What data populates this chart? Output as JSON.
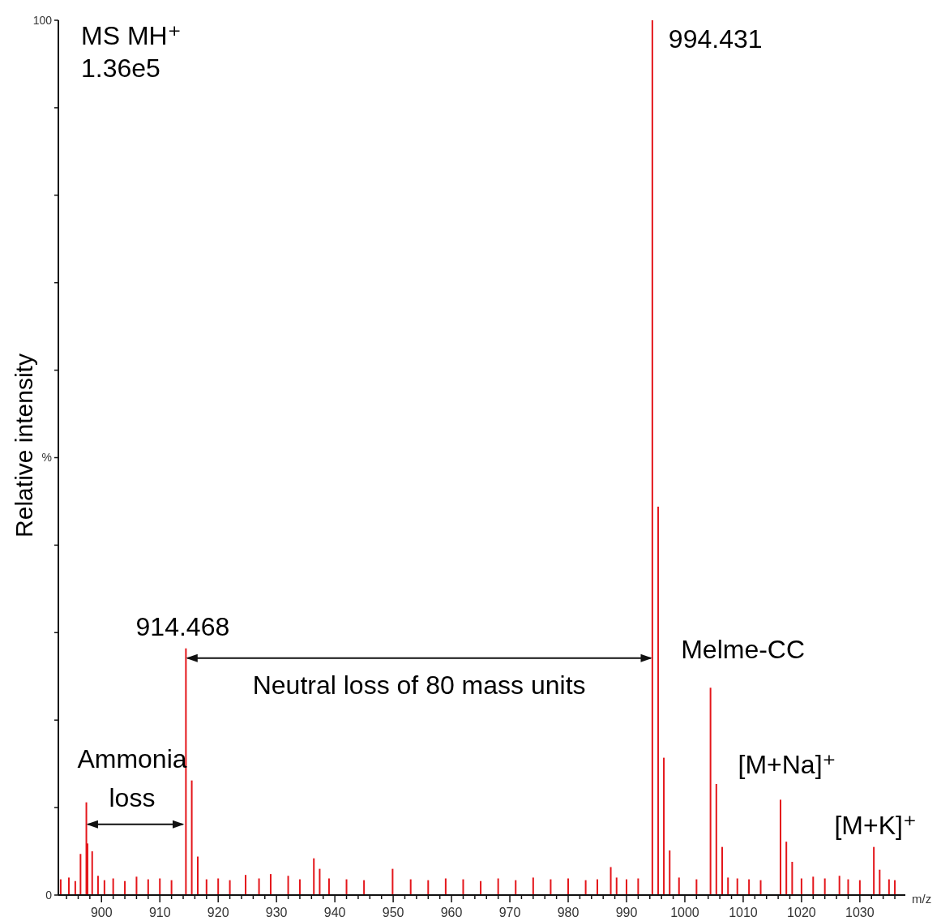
{
  "chart_data": {
    "type": "bar",
    "xlabel": "m/z",
    "ylabel": "Relative intensity",
    "x": [
      893,
      894.4,
      895.5,
      896.4,
      897.4,
      897.6,
      898.4,
      899.4,
      900.5,
      902,
      904,
      906,
      908,
      910,
      912,
      914.468,
      915.47,
      916.5,
      918,
      920,
      922,
      924.7,
      927,
      929,
      932,
      934,
      936.4,
      937.4,
      939,
      942,
      945,
      949.9,
      953,
      956,
      959,
      962,
      965,
      968,
      971,
      974,
      977,
      980,
      983,
      985,
      987.3,
      988.3,
      990,
      992,
      994.431,
      995.43,
      996.4,
      997.4,
      999,
      1002,
      1004.4,
      1005.4,
      1006.4,
      1007.4,
      1009,
      1011,
      1013,
      1016.4,
      1017.4,
      1018.4,
      1020,
      1022,
      1024,
      1026.5,
      1028,
      1030,
      1032.4,
      1033.4,
      1035,
      1036
    ],
    "values": [
      1.8,
      2.0,
      1.6,
      4.7,
      10.6,
      5.9,
      5.0,
      2.2,
      1.7,
      1.9,
      1.6,
      2.1,
      1.8,
      1.9,
      1.7,
      28.2,
      13.1,
      4.4,
      1.8,
      1.9,
      1.7,
      2.3,
      1.9,
      2.4,
      2.2,
      1.8,
      4.2,
      3.0,
      1.9,
      1.8,
      1.7,
      3.0,
      1.8,
      1.7,
      1.9,
      1.8,
      1.6,
      1.9,
      1.7,
      2.0,
      1.8,
      1.9,
      1.7,
      1.8,
      3.2,
      2.0,
      1.8,
      1.9,
      100,
      44.4,
      15.7,
      5.1,
      2.0,
      1.8,
      23.7,
      12.7,
      5.5,
      2.0,
      1.9,
      1.8,
      1.7,
      10.9,
      6.1,
      3.8,
      1.9,
      2.1,
      1.9,
      2.2,
      1.8,
      1.7,
      5.5,
      2.9,
      1.8,
      1.7
    ],
    "color": "#e4161b",
    "xlim": [
      892.6,
      1037.8
    ],
    "xticks": [
      900,
      910,
      920,
      930,
      940,
      950,
      960,
      970,
      980,
      990,
      1000,
      1010,
      1020,
      1030,
      {
        "value": 894,
        "label": null
      },
      {
        "value": 896,
        "label": null
      },
      {
        "value": 898,
        "label": null
      },
      {
        "value": 902,
        "label": null
      },
      {
        "value": 904,
        "label": null
      },
      {
        "value": 906,
        "label": null
      },
      {
        "value": 908,
        "label": null
      },
      {
        "value": 912,
        "label": null
      },
      {
        "value": 914,
        "label": null
      },
      {
        "value": 916,
        "label": null
      },
      {
        "value": 918,
        "label": null
      },
      {
        "value": 922,
        "label": null
      },
      {
        "value": 924,
        "label": null
      },
      {
        "value": 926,
        "label": null
      },
      {
        "value": 928,
        "label": null
      },
      {
        "value": 932,
        "label": null
      },
      {
        "value": 934,
        "label": null
      },
      {
        "value": 936,
        "label": null
      },
      {
        "value": 938,
        "label": null
      },
      {
        "value": 942,
        "label": null
      },
      {
        "value": 944,
        "label": null
      },
      {
        "value": 946,
        "label": null
      },
      {
        "value": 948,
        "label": null
      },
      {
        "value": 952,
        "label": null
      },
      {
        "value": 954,
        "label": null
      },
      {
        "value": 956,
        "label": null
      },
      {
        "value": 958,
        "label": null
      },
      {
        "value": 962,
        "label": null
      },
      {
        "value": 964,
        "label": null
      },
      {
        "value": 966,
        "label": null
      },
      {
        "value": 968,
        "label": null
      },
      {
        "value": 972,
        "label": null
      },
      {
        "value": 974,
        "label": null
      },
      {
        "value": 976,
        "label": null
      },
      {
        "value": 978,
        "label": null
      },
      {
        "value": 982,
        "label": null
      },
      {
        "value": 984,
        "label": null
      },
      {
        "value": 986,
        "label": null
      },
      {
        "value": 988,
        "label": null
      },
      {
        "value": 992,
        "label": null
      },
      {
        "value": 994,
        "label": null
      },
      {
        "value": 996,
        "label": null
      },
      {
        "value": 998,
        "label": null
      },
      {
        "value": 1002,
        "label": null
      },
      {
        "value": 1004,
        "label": null
      },
      {
        "value": 1006,
        "label": null
      },
      {
        "value": 1008,
        "label": null
      },
      {
        "value": 1012,
        "label": null
      },
      {
        "value": 1014,
        "label": null
      },
      {
        "value": 1016,
        "label": null
      },
      {
        "value": 1018,
        "label": null
      },
      {
        "value": 1022,
        "label": null
      },
      {
        "value": 1024,
        "label": null
      },
      {
        "value": 1026,
        "label": null
      },
      {
        "value": 1028,
        "label": null
      },
      {
        "value": 1032,
        "label": null
      },
      {
        "value": 1034,
        "label": null
      },
      {
        "value": 1036,
        "label": null
      }
    ],
    "ylim": [
      0,
      100
    ],
    "yticks": [
      0,
      {
        "value": 10,
        "label": null
      },
      {
        "value": 20,
        "label": null
      },
      {
        "value": 30,
        "label": null
      },
      {
        "value": 40,
        "label": null
      },
      {
        "value": 50,
        "label": "%"
      },
      {
        "value": 60,
        "label": null
      },
      {
        "value": 70,
        "label": null
      },
      {
        "value": 80,
        "label": null
      },
      {
        "value": 90,
        "label": null
      },
      100
    ],
    "annotations": [
      "MS MH⁺",
      "1.36e5",
      {
        "text": "994.431",
        "x": 994.431,
        "y": 100
      },
      {
        "text": "914.468",
        "x": 914.468,
        "y": 28.2
      },
      {
        "text": "Melme-CC",
        "x": 1004.4,
        "y": 23.7
      },
      "Neutral loss of 80 mass units",
      "Ammonia loss",
      {
        "text": "[M+Na]⁺",
        "x": 1016.4,
        "y": 10.9
      },
      {
        "text": "[M+K]⁺",
        "x": 1032.4,
        "y": 5.5
      }
    ]
  }
}
